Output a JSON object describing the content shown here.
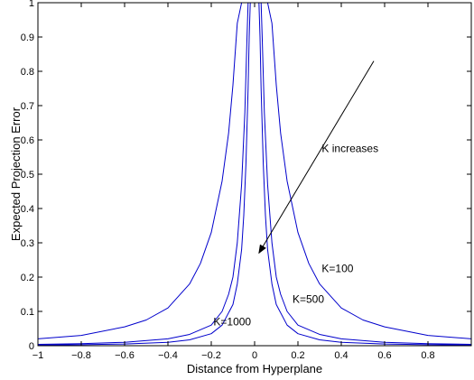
{
  "chart_data": {
    "type": "line",
    "title": "",
    "xlabel": "Distance from Hyperplane",
    "ylabel": "Expected Projection Error",
    "xlim": [
      -1,
      1
    ],
    "ylim": [
      0,
      1
    ],
    "x_ticks": [
      -1,
      -0.8,
      -0.6,
      -0.4,
      -0.2,
      0,
      0.2,
      0.4,
      0.6,
      0.8
    ],
    "x_tick_labels": [
      "−1",
      "−0.8",
      "−0.6",
      "−0.4",
      "−0.2",
      "0",
      "0.2",
      "0.4",
      "0.6",
      "0.8"
    ],
    "y_ticks": [
      0,
      0.1,
      0.2,
      0.3,
      0.4,
      0.5,
      0.6,
      0.7,
      0.8,
      0.9,
      1
    ],
    "y_tick_labels": [
      "0",
      "0.1",
      "0.2",
      "0.3",
      "0.4",
      "0.5",
      "0.6",
      "0.7",
      "0.8",
      "0.9",
      "1"
    ],
    "grid": false,
    "line_color": "#0000cc",
    "series": [
      {
        "name": "K=100",
        "x": [
          -1,
          -0.8,
          -0.6,
          -0.5,
          -0.4,
          -0.3,
          -0.25,
          -0.2,
          -0.15,
          -0.12,
          -0.1,
          -0.08,
          -0.06,
          0.06,
          0.08,
          0.1,
          0.12,
          0.15,
          0.2,
          0.25,
          0.3,
          0.4,
          0.5,
          0.6,
          0.8,
          1
        ],
        "y": [
          0.02,
          0.03,
          0.055,
          0.075,
          0.11,
          0.18,
          0.24,
          0.33,
          0.48,
          0.62,
          0.76,
          0.94,
          1,
          1,
          0.94,
          0.76,
          0.62,
          0.48,
          0.33,
          0.24,
          0.18,
          0.11,
          0.075,
          0.055,
          0.03,
          0.02
        ]
      },
      {
        "name": "K=500",
        "x": [
          -1,
          -0.8,
          -0.6,
          -0.4,
          -0.3,
          -0.2,
          -0.15,
          -0.12,
          -0.1,
          -0.08,
          -0.06,
          -0.045,
          -0.035,
          -0.03,
          0.03,
          0.035,
          0.045,
          0.06,
          0.08,
          0.1,
          0.12,
          0.15,
          0.2,
          0.3,
          0.4,
          0.6,
          0.8,
          1
        ],
        "y": [
          0.004,
          0.006,
          0.01,
          0.02,
          0.033,
          0.06,
          0.1,
          0.15,
          0.2,
          0.3,
          0.47,
          0.68,
          0.9,
          1,
          1,
          0.9,
          0.68,
          0.47,
          0.3,
          0.2,
          0.15,
          0.1,
          0.06,
          0.033,
          0.02,
          0.01,
          0.006,
          0.004
        ]
      },
      {
        "name": "K=1000",
        "x": [
          -1,
          -0.8,
          -0.6,
          -0.4,
          -0.3,
          -0.2,
          -0.15,
          -0.1,
          -0.08,
          -0.06,
          -0.05,
          -0.04,
          -0.03,
          -0.025,
          -0.02,
          0.02,
          0.025,
          0.03,
          0.04,
          0.05,
          0.06,
          0.08,
          0.1,
          0.15,
          0.2,
          0.3,
          0.4,
          0.6,
          0.8,
          1
        ],
        "y": [
          0.002,
          0.003,
          0.005,
          0.01,
          0.017,
          0.035,
          0.06,
          0.12,
          0.18,
          0.28,
          0.38,
          0.53,
          0.75,
          0.9,
          1,
          1,
          0.9,
          0.75,
          0.53,
          0.38,
          0.28,
          0.18,
          0.12,
          0.06,
          0.035,
          0.017,
          0.01,
          0.005,
          0.003,
          0.002
        ]
      }
    ],
    "annotations": [
      {
        "text": "K=100",
        "x": 0.31,
        "y": 0.225
      },
      {
        "text": "K=500",
        "x": 0.175,
        "y": 0.135
      },
      {
        "text": "K=1000",
        "x": -0.19,
        "y": 0.07
      },
      {
        "text": "K increases",
        "x": 0.31,
        "y": 0.575
      }
    ],
    "arrow": {
      "from": [
        0.55,
        0.83
      ],
      "to": [
        0.02,
        0.27
      ]
    }
  }
}
